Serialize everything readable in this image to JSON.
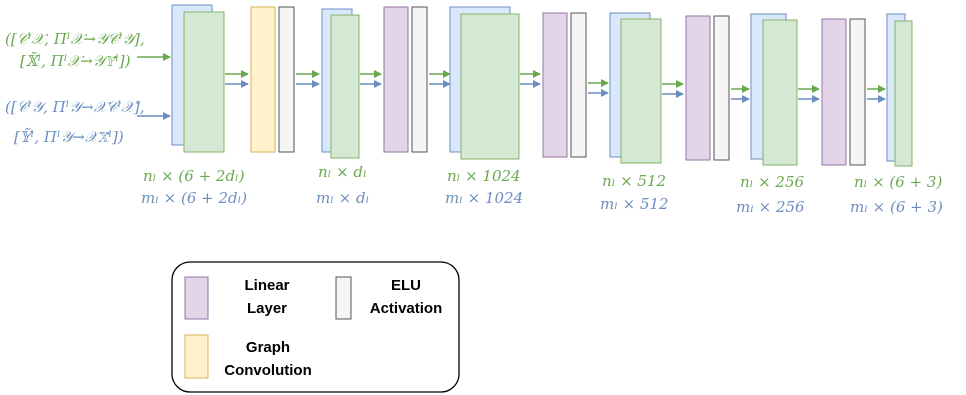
{
  "inputs": {
    "green_line1": "([𝒞ˡ𝒳, Πˡ𝒳→𝒴𝒞ˡ𝒴],",
    "green_line2": "[𝕏̃ˡ, Πˡ𝒳→𝒴𝕐̃ˡ])",
    "blue_line1": "([𝒞ˡ𝒴, Πˡ𝒴→𝒳𝒞ˡ𝒳],",
    "blue_line2": "[𝕐̃ˡ, Πˡ𝒴→𝒳𝕏̃ˡ])"
  },
  "dims": [
    {
      "green": "nₗ × (6 + 2dₗ)",
      "blue": "mₗ × (6 + 2dₗ)"
    },
    {
      "green": "nₗ × dₗ",
      "blue": "mₗ × dₗ"
    },
    {
      "green": "nₗ × 1024",
      "blue": "mₗ × 1024"
    },
    {
      "green": "nₗ × 512",
      "blue": "mₗ × 512"
    },
    {
      "green": "nₗ × 256",
      "blue": "mₗ × 256"
    },
    {
      "green": "nₗ × (6 + 3)",
      "blue": "mₗ × (6 + 3)"
    }
  ],
  "legend": {
    "linear_line1": "Linear",
    "linear_line2": "Layer",
    "elu_line1": "ELU",
    "elu_line2": "Activation",
    "graph_line1": "Graph",
    "graph_line2": "Convolution"
  },
  "colors": {
    "green_stream": "#6aa84f",
    "blue_stream": "#6c8ebf",
    "green_fill": "#d5e8d4",
    "blue_fill": "#dae8fc",
    "linear_fill": "#e1d5e7",
    "linear_stroke": "#9673a6",
    "elu_fill": "#f5f5f5",
    "graph_fill": "#fff2cc",
    "graph_stroke": "#d6b656"
  }
}
